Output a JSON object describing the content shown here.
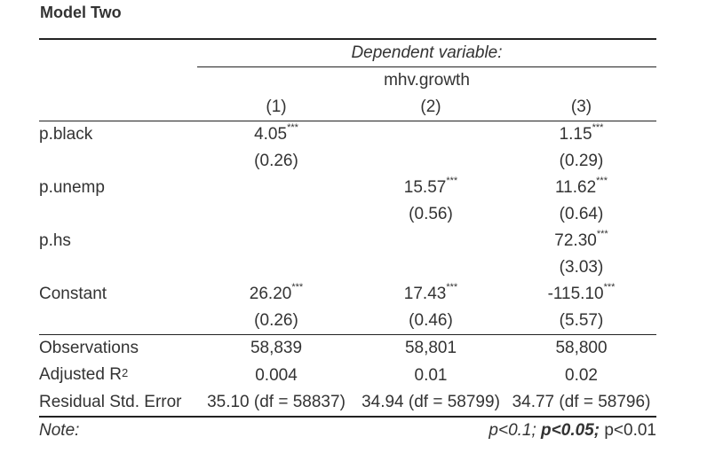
{
  "title": "Model Two",
  "header": {
    "dependent_label": "Dependent variable:",
    "dependent_name": "mhv.growth",
    "columns": [
      "(1)",
      "(2)",
      "(3)"
    ]
  },
  "rows": [
    {
      "label": "p.black",
      "coef": [
        {
          "v": "4.05",
          "s": "***"
        },
        {
          "v": "",
          "s": ""
        },
        {
          "v": "1.15",
          "s": "***"
        }
      ],
      "se": [
        "(0.26)",
        "",
        "(0.29)"
      ]
    },
    {
      "label": "p.unemp",
      "coef": [
        {
          "v": "",
          "s": ""
        },
        {
          "v": "15.57",
          "s": "***"
        },
        {
          "v": "11.62",
          "s": "***"
        }
      ],
      "se": [
        "",
        "(0.56)",
        "(0.64)"
      ]
    },
    {
      "label": "p.hs",
      "coef": [
        {
          "v": "",
          "s": ""
        },
        {
          "v": "",
          "s": ""
        },
        {
          "v": "72.30",
          "s": "***"
        }
      ],
      "se": [
        "",
        "",
        "(3.03)"
      ]
    },
    {
      "label": "Constant",
      "coef": [
        {
          "v": "26.20",
          "s": "***"
        },
        {
          "v": "17.43",
          "s": "***"
        },
        {
          "v": "-115.10",
          "s": "***"
        }
      ],
      "se": [
        "(0.26)",
        "(0.46)",
        "(5.57)"
      ]
    }
  ],
  "stats": {
    "observations": {
      "label": "Observations",
      "values": [
        "58,839",
        "58,801",
        "58,800"
      ]
    },
    "adj_r2": {
      "label": "Adjusted R",
      "label_sup": "2",
      "values": [
        "0.004",
        "0.01",
        "0.02"
      ]
    },
    "rse": {
      "label": "Residual Std. Error",
      "values": [
        "35.10 (df = 58837)",
        "34.94 (df = 58799)",
        "34.77 (df = 58796)"
      ]
    }
  },
  "note": {
    "label": "Note:",
    "p1": "p<0.1;",
    "p2": "p<0.05;",
    "p3": "p<0.01"
  }
}
